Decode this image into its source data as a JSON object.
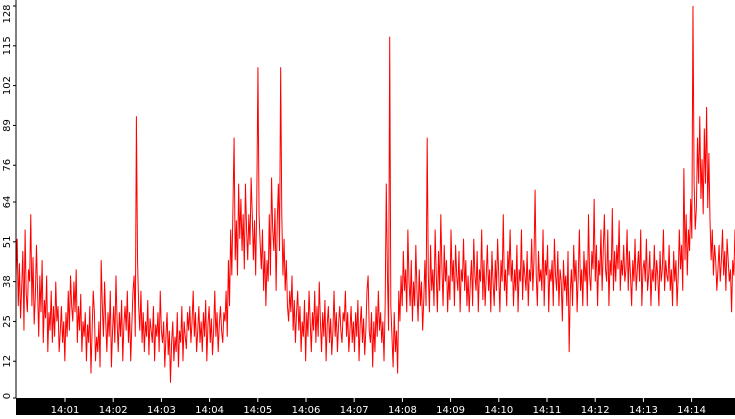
{
  "chart_data": {
    "type": "line",
    "title": "",
    "xlabel": "",
    "ylabel": "",
    "ylim": [
      0,
      128
    ],
    "yticks": [
      0,
      12,
      25,
      38,
      51,
      64,
      76,
      89,
      102,
      115,
      128
    ],
    "xticks": [
      "14:01",
      "14:02",
      "14:03",
      "14:04",
      "14:05",
      "14:06",
      "14:07",
      "14:08",
      "14:09",
      "14:10",
      "14:11",
      "14:12",
      "14:13",
      "14:14"
    ],
    "grid": false,
    "line_color": "#ff0000",
    "axis_color": "#000000",
    "series": [
      {
        "values": [
          40,
          52,
          30,
          44,
          26,
          36,
          48,
          22,
          55,
          34,
          28,
          42,
          38,
          60,
          30,
          46,
          24,
          33,
          50,
          35,
          20,
          40,
          28,
          45,
          18,
          32,
          26,
          40,
          15,
          28,
          22,
          35,
          18,
          30,
          20,
          38,
          25,
          30,
          15,
          22,
          30,
          18,
          25,
          12,
          28,
          20,
          35,
          22,
          40,
          30,
          25,
          38,
          28,
          42,
          18,
          30,
          22,
          34,
          15,
          25,
          20,
          28,
          12,
          24,
          18,
          30,
          8,
          22,
          35,
          28,
          12,
          20,
          15,
          25,
          10,
          45,
          30,
          20,
          38,
          25,
          15,
          28,
          20,
          35,
          10,
          22,
          30,
          18,
          40,
          25,
          15,
          28,
          20,
          32,
          12,
          24,
          30,
          22,
          35,
          18,
          28,
          12,
          24,
          35,
          40,
          20,
          92,
          45,
          30,
          22,
          35,
          18,
          28,
          15,
          25,
          20,
          32,
          14,
          26,
          22,
          18,
          30,
          12,
          24,
          20,
          28,
          15,
          35,
          22,
          18,
          25,
          10,
          20,
          28,
          14,
          22,
          5,
          18,
          25,
          12,
          20,
          15,
          28,
          10,
          22,
          18,
          30,
          12,
          25,
          20,
          16,
          28,
          22,
          30,
          18,
          25,
          35,
          20,
          28,
          15,
          22,
          30,
          18,
          25,
          15,
          28,
          20,
          32,
          12,
          24,
          30,
          18,
          26,
          14,
          22,
          35,
          20,
          28,
          15,
          24,
          30,
          22,
          18,
          28,
          25,
          35,
          20,
          45,
          30,
          55,
          40,
          62,
          85,
          45,
          58,
          40,
          70,
          52,
          65,
          48,
          60,
          42,
          70,
          55,
          45,
          60,
          50,
          72,
          60,
          45,
          58,
          40,
          65,
          108,
          60,
          50,
          42,
          55,
          35,
          48,
          30,
          45,
          38,
          60,
          40,
          72,
          55,
          48,
          62,
          35,
          58,
          70,
          48,
          108,
          60,
          40,
          52,
          35,
          45,
          30,
          25,
          35,
          28,
          40,
          22,
          32,
          18,
          28,
          35,
          22,
          30,
          15,
          25,
          20,
          32,
          12,
          28,
          20,
          35,
          25,
          15,
          28,
          22,
          35,
          18,
          30,
          20,
          38,
          25,
          15,
          28,
          20,
          32,
          12,
          24,
          30,
          18,
          26,
          14,
          22,
          35,
          20,
          28,
          15,
          24,
          30,
          22,
          18,
          28,
          25,
          35,
          20,
          28,
          15,
          22,
          30,
          18,
          25,
          15,
          28,
          20,
          32,
          12,
          24,
          30,
          18,
          26,
          14,
          22,
          35,
          40,
          22,
          18,
          28,
          10,
          25,
          15,
          30,
          20,
          35,
          22,
          28,
          18,
          25,
          12,
          30,
          70,
          40,
          22,
          118,
          30,
          20,
          10,
          28,
          15,
          22,
          8,
          35,
          25,
          40,
          30,
          48,
          35,
          42,
          28,
          55,
          38,
          30,
          45,
          25,
          38,
          30,
          50,
          35,
          25,
          42,
          30,
          38,
          22,
          32,
          45,
          30,
          85,
          40,
          28,
          50,
          35,
          42,
          30,
          55,
          40,
          28,
          48,
          35,
          60,
          42,
          30,
          50,
          38,
          45,
          28,
          40,
          32,
          55,
          38,
          45,
          30,
          50,
          40,
          35,
          48,
          28,
          42,
          38,
          52,
          35,
          45,
          30,
          40,
          28,
          38,
          45,
          30,
          52,
          40,
          35,
          48,
          28,
          42,
          38,
          55,
          32,
          45,
          30,
          40,
          50,
          35,
          42,
          28,
          48,
          38,
          30,
          45,
          35,
          52,
          40,
          28,
          45,
          38,
          60,
          35,
          42,
          30,
          48,
          40,
          55,
          38,
          45,
          30,
          42,
          35,
          50,
          28,
          42,
          38,
          55,
          32,
          45,
          40,
          35,
          48,
          30,
          42,
          38,
          52,
          35,
          45,
          68,
          40,
          30,
          48,
          38,
          42,
          35,
          55,
          30,
          45,
          40,
          50,
          28,
          42,
          38,
          45,
          30,
          52,
          40,
          35,
          48,
          30,
          42,
          38,
          25,
          45,
          35,
          40,
          30,
          48,
          15,
          35,
          42,
          30,
          50,
          38,
          45,
          28,
          40,
          55,
          35,
          42,
          30,
          48,
          38,
          45,
          30,
          60,
          40,
          35,
          48,
          42,
          65,
          38,
          50,
          30,
          45,
          40,
          55,
          35,
          48,
          60,
          42,
          38,
          55,
          30,
          45,
          40,
          62,
          35,
          48,
          38,
          50,
          42,
          58,
          35,
          45,
          40,
          50,
          38,
          42,
          55,
          35,
          48,
          40,
          30,
          45,
          38,
          52,
          35,
          42,
          48,
          38,
          55,
          30,
          42,
          45,
          38,
          52,
          35,
          40,
          48,
          30,
          42,
          38,
          50,
          35,
          45,
          40,
          30,
          48,
          38,
          42,
          55,
          35,
          45,
          40,
          38,
          50,
          35,
          42,
          30,
          48,
          38,
          45,
          30,
          40,
          55,
          42,
          50,
          35,
          75,
          45,
          60,
          40,
          55,
          48,
          65,
          52,
          128,
          70,
          55,
          62,
          85,
          70,
          92,
          65,
          78,
          60,
          88,
          70,
          95,
          62,
          80,
          58,
          45,
          55,
          40,
          50,
          45,
          35,
          42,
          50,
          38,
          45,
          55,
          40,
          48,
          35,
          52,
          45,
          38,
          42,
          28,
          45,
          40,
          55
        ]
      }
    ]
  }
}
